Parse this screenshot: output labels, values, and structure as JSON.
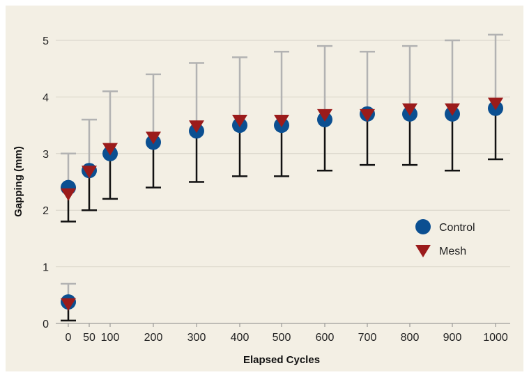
{
  "chart_data": {
    "type": "scatter",
    "title": "",
    "xlabel": "Elapsed Cycles",
    "ylabel": "Gapping (mm)",
    "x": [
      0,
      50,
      100,
      200,
      300,
      400,
      500,
      600,
      700,
      800,
      900,
      1000
    ],
    "x_tick_labels": [
      "0",
      "50",
      "100",
      "200",
      "300",
      "400",
      "500",
      "600",
      "700",
      "800",
      "900",
      "1000"
    ],
    "ylim": [
      0,
      5
    ],
    "y_ticks": [
      "0",
      "1",
      "2",
      "3",
      "4",
      "5"
    ],
    "grid": true,
    "legend_position": "right, middle",
    "series": [
      {
        "name": "Control",
        "marker": "circle",
        "color": "#0b4f91",
        "points": [
          {
            "x": 0,
            "y": 0.38,
            "err_low": 0.05,
            "err_high": 0.7
          },
          {
            "x": 0,
            "y": 2.4,
            "err_low": 1.8,
            "err_high": 3.0
          },
          {
            "x": 50,
            "y": 2.7,
            "err_low": 2.0,
            "err_high": 3.6
          },
          {
            "x": 100,
            "y": 3.0,
            "err_low": 2.2,
            "err_high": 4.1
          },
          {
            "x": 200,
            "y": 3.2,
            "err_low": 2.4,
            "err_high": 4.4
          },
          {
            "x": 300,
            "y": 3.4,
            "err_low": 2.5,
            "err_high": 4.6
          },
          {
            "x": 400,
            "y": 3.5,
            "err_low": 2.6,
            "err_high": 4.7
          },
          {
            "x": 500,
            "y": 3.5,
            "err_low": 2.6,
            "err_high": 4.8
          },
          {
            "x": 600,
            "y": 3.6,
            "err_low": 2.7,
            "err_high": 4.9
          },
          {
            "x": 700,
            "y": 3.7,
            "err_low": 2.8,
            "err_high": 4.8
          },
          {
            "x": 800,
            "y": 3.7,
            "err_low": 2.8,
            "err_high": 4.9
          },
          {
            "x": 900,
            "y": 3.7,
            "err_low": 2.7,
            "err_high": 5.0
          },
          {
            "x": 1000,
            "y": 3.8,
            "err_low": 2.9,
            "err_high": 5.1
          }
        ]
      },
      {
        "name": "Mesh",
        "marker": "triangle-down",
        "color": "#9b1b1b",
        "points": [
          {
            "x": 0,
            "y": 0.36
          },
          {
            "x": 0,
            "y": 2.3
          },
          {
            "x": 50,
            "y": 2.7
          },
          {
            "x": 100,
            "y": 3.1
          },
          {
            "x": 200,
            "y": 3.3
          },
          {
            "x": 300,
            "y": 3.5
          },
          {
            "x": 400,
            "y": 3.6
          },
          {
            "x": 500,
            "y": 3.6
          },
          {
            "x": 600,
            "y": 3.7
          },
          {
            "x": 700,
            "y": 3.7
          },
          {
            "x": 800,
            "y": 3.8
          },
          {
            "x": 900,
            "y": 3.8
          },
          {
            "x": 1000,
            "y": 3.9
          }
        ]
      }
    ],
    "colors": {
      "background": "#f3efe4",
      "gridline": "#d6d2c7",
      "error_bar_upper": "#b2b2b2",
      "error_bar_lower": "#111111"
    }
  }
}
